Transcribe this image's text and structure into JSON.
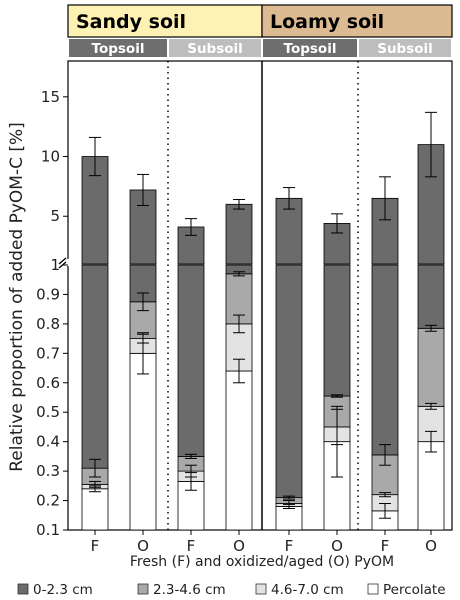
{
  "chart_data": {
    "type": "bar",
    "stacked": true,
    "ylabel": "Relative proportion of added PyOM-C [%]",
    "xlabel": "Fresh (F) and oxidized/aged (O) PyOM",
    "axis_break": {
      "lower_range": [
        0.1,
        1.0
      ],
      "upper_range": [
        1.0,
        18.0
      ]
    },
    "lower_ticks": [
      "0.1",
      "0.2",
      "0.3",
      "0.4",
      "0.5",
      "0.6",
      "0.7",
      "0.8",
      "0.9",
      "1"
    ],
    "upper_ticks": [
      "5",
      "10",
      "15"
    ],
    "legend": [
      {
        "name": "0-2.3 cm",
        "color": "#6b6b6b"
      },
      {
        "name": "2.3-4.6 cm",
        "color": "#a9a9a9"
      },
      {
        "name": "4.6-7.0 cm",
        "color": "#e3e3e3"
      },
      {
        "name": "Percolate",
        "color": "#ffffff"
      }
    ],
    "panels": [
      {
        "soil": "Sandy soil",
        "soil_color": "#fdf2b3",
        "layers": [
          {
            "name": "Topsoil",
            "color": "#6e6e6e"
          },
          {
            "name": "Subsoil",
            "color": "#bdbdbd"
          }
        ]
      },
      {
        "soil": "Loamy soil",
        "soil_color": "#dcbb93",
        "layers": [
          {
            "name": "Topsoil",
            "color": "#6e6e6e"
          },
          {
            "name": "Subsoil",
            "color": "#bdbdbd"
          }
        ]
      }
    ],
    "bars": [
      {
        "label": "F",
        "soil": "Sandy soil",
        "layer": "Topsoil",
        "percolate": 0.24,
        "d46_70": 0.255,
        "d23_46": 0.31,
        "d0_23": 10.0,
        "err": {
          "percolate": 0.01,
          "d46_70": 0.01,
          "d23_46": 0.03,
          "d0_23": 1.6
        }
      },
      {
        "label": "O",
        "soil": "Sandy soil",
        "layer": "Topsoil",
        "percolate": 0.7,
        "d46_70": 0.75,
        "d23_46": 0.875,
        "d0_23": 7.2,
        "err": {
          "percolate": 0.07,
          "d46_70": 0.015,
          "d23_46": 0.03,
          "d0_23": 1.3
        }
      },
      {
        "label": "F",
        "soil": "Sandy soil",
        "layer": "Subsoil",
        "percolate": 0.265,
        "d46_70": 0.3,
        "d23_46": 0.35,
        "d0_23": 4.1,
        "err": {
          "percolate": 0.03,
          "d46_70": 0.02,
          "d23_46": 0.007,
          "d0_23": 0.7
        }
      },
      {
        "label": "O",
        "soil": "Sandy soil",
        "layer": "Subsoil",
        "percolate": 0.64,
        "d46_70": 0.8,
        "d23_46": 0.97,
        "d0_23": 6.0,
        "err": {
          "percolate": 0.04,
          "d46_70": 0.03,
          "d23_46": 0.007,
          "d0_23": 0.4
        }
      },
      {
        "label": "F",
        "soil": "Loamy soil",
        "layer": "Topsoil",
        "percolate": 0.18,
        "d46_70": 0.19,
        "d23_46": 0.21,
        "d0_23": 6.5,
        "err": {
          "percolate": 0.007,
          "d46_70": 0.01,
          "d23_46": 0.005,
          "d0_23": 0.9
        }
      },
      {
        "label": "O",
        "soil": "Loamy soil",
        "layer": "Topsoil",
        "percolate": 0.4,
        "d46_70": 0.45,
        "d23_46": 0.555,
        "d0_23": 4.4,
        "err": {
          "percolate": 0.12,
          "d46_70": 0.06,
          "d23_46": 0.004,
          "d0_23": 0.8
        }
      },
      {
        "label": "F",
        "soil": "Loamy soil",
        "layer": "Subsoil",
        "percolate": 0.165,
        "d46_70": 0.22,
        "d23_46": 0.355,
        "d0_23": 6.5,
        "err": {
          "percolate": 0.025,
          "d46_70": 0.007,
          "d23_46": 0.035,
          "d0_23": 1.8
        }
      },
      {
        "label": "O",
        "soil": "Loamy soil",
        "layer": "Subsoil",
        "percolate": 0.4,
        "d46_70": 0.52,
        "d23_46": 0.785,
        "d0_23": 11.0,
        "err": {
          "percolate": 0.035,
          "d46_70": 0.01,
          "d23_46": 0.01,
          "d0_23": 2.7
        }
      }
    ]
  }
}
